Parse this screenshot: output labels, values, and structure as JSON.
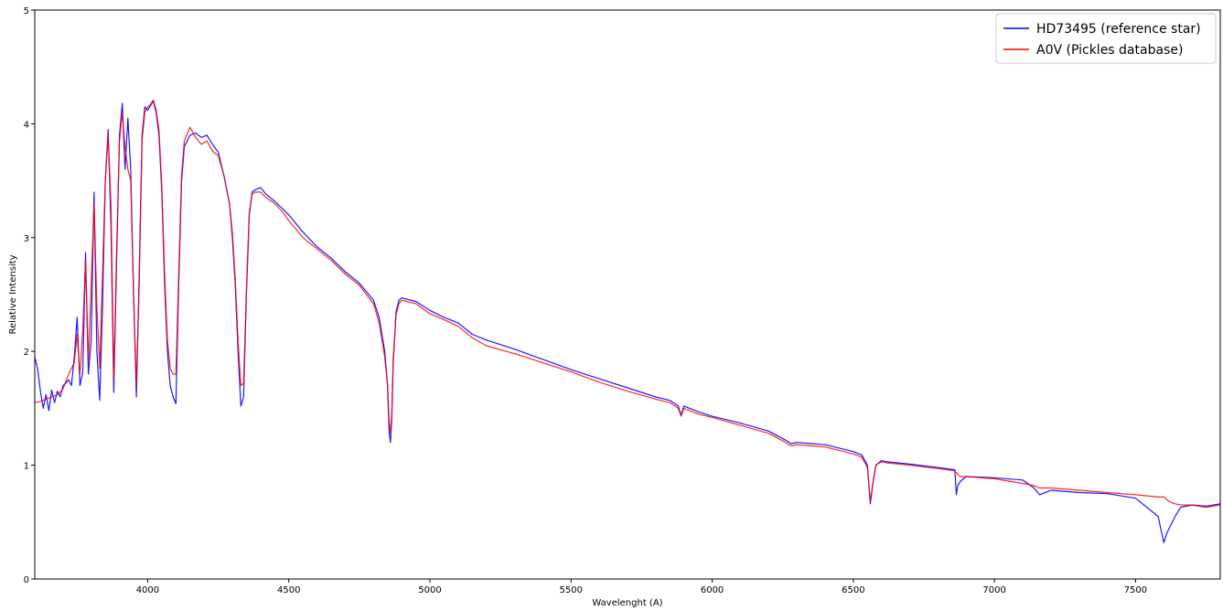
{
  "chart_data": {
    "type": "line",
    "title": "",
    "xlabel": "Wavelenght (A)",
    "ylabel": "Relative Intensity",
    "xlim": [
      3600,
      7800
    ],
    "ylim": [
      0,
      5
    ],
    "x_ticks": [
      4000,
      4500,
      5000,
      5500,
      6000,
      6500,
      7000,
      7500
    ],
    "y_ticks": [
      0,
      1,
      2,
      3,
      4,
      5
    ],
    "grid": false,
    "legend_position": "top-right",
    "series": [
      {
        "name": "HD73495 (reference star)",
        "color": "#0000ff",
        "x": [
          3600,
          3610,
          3620,
          3630,
          3640,
          3650,
          3660,
          3670,
          3680,
          3690,
          3700,
          3710,
          3720,
          3730,
          3740,
          3750,
          3760,
          3770,
          3780,
          3790,
          3800,
          3810,
          3820,
          3830,
          3840,
          3850,
          3860,
          3870,
          3880,
          3890,
          3900,
          3910,
          3920,
          3930,
          3940,
          3950,
          3960,
          3970,
          3980,
          3990,
          4000,
          4010,
          4020,
          4030,
          4040,
          4050,
          4060,
          4070,
          4080,
          4090,
          4100,
          4110,
          4120,
          4130,
          4150,
          4170,
          4190,
          4210,
          4230,
          4250,
          4270,
          4290,
          4300,
          4310,
          4320,
          4330,
          4340,
          4350,
          4360,
          4370,
          4380,
          4400,
          4420,
          4450,
          4480,
          4500,
          4550,
          4600,
          4650,
          4700,
          4750,
          4800,
          4820,
          4840,
          4850,
          4855,
          4860,
          4865,
          4870,
          4880,
          4890,
          4900,
          4950,
          5000,
          5050,
          5100,
          5150,
          5200,
          5300,
          5400,
          5500,
          5600,
          5700,
          5800,
          5850,
          5880,
          5890,
          5900,
          5950,
          6000,
          6100,
          6200,
          6260,
          6280,
          6300,
          6400,
          6500,
          6530,
          6550,
          6560,
          6570,
          6580,
          6600,
          6620,
          6700,
          6800,
          6860,
          6865,
          6870,
          6880,
          6900,
          7000,
          7100,
          7140,
          7160,
          7200,
          7300,
          7400,
          7500,
          7580,
          7600,
          7610,
          7620,
          7640,
          7660,
          7700,
          7750,
          7800
        ],
        "y": [
          1.95,
          1.85,
          1.65,
          1.5,
          1.62,
          1.48,
          1.66,
          1.55,
          1.65,
          1.6,
          1.7,
          1.72,
          1.75,
          1.7,
          1.95,
          2.3,
          1.7,
          1.82,
          2.87,
          1.8,
          2.1,
          3.4,
          2.0,
          1.57,
          2.4,
          3.5,
          3.95,
          3.1,
          1.64,
          2.8,
          3.9,
          4.18,
          3.6,
          4.05,
          3.6,
          2.5,
          1.6,
          2.7,
          3.9,
          4.15,
          4.12,
          4.16,
          4.2,
          4.1,
          3.9,
          3.4,
          2.6,
          2.0,
          1.7,
          1.6,
          1.54,
          2.6,
          3.5,
          3.8,
          3.9,
          3.92,
          3.88,
          3.9,
          3.82,
          3.75,
          3.55,
          3.3,
          3.0,
          2.6,
          2.0,
          1.52,
          1.6,
          2.5,
          3.2,
          3.4,
          3.42,
          3.44,
          3.38,
          3.32,
          3.25,
          3.2,
          3.05,
          2.92,
          2.82,
          2.7,
          2.6,
          2.45,
          2.3,
          2.0,
          1.7,
          1.3,
          1.2,
          1.4,
          1.9,
          2.35,
          2.45,
          2.47,
          2.44,
          2.36,
          2.3,
          2.25,
          2.15,
          2.1,
          2.02,
          1.93,
          1.84,
          1.76,
          1.68,
          1.6,
          1.57,
          1.52,
          1.44,
          1.52,
          1.47,
          1.43,
          1.37,
          1.3,
          1.22,
          1.19,
          1.2,
          1.18,
          1.12,
          1.09,
          1.0,
          0.66,
          0.85,
          1.0,
          1.04,
          1.03,
          1.01,
          0.98,
          0.96,
          0.74,
          0.82,
          0.86,
          0.9,
          0.89,
          0.87,
          0.8,
          0.74,
          0.78,
          0.76,
          0.75,
          0.71,
          0.55,
          0.32,
          0.4,
          0.45,
          0.55,
          0.63,
          0.65,
          0.64,
          0.66
        ]
      },
      {
        "name": "A0V (Pickles database)",
        "color": "#ff0000",
        "x": [
          3600,
          3620,
          3640,
          3660,
          3680,
          3700,
          3720,
          3730,
          3740,
          3750,
          3760,
          3770,
          3780,
          3790,
          3800,
          3810,
          3820,
          3830,
          3840,
          3850,
          3860,
          3870,
          3880,
          3890,
          3900,
          3910,
          3920,
          3930,
          3940,
          3950,
          3960,
          3970,
          3980,
          3990,
          4000,
          4010,
          4020,
          4030,
          4040,
          4050,
          4060,
          4070,
          4080,
          4090,
          4100,
          4110,
          4120,
          4130,
          4150,
          4170,
          4190,
          4210,
          4230,
          4250,
          4270,
          4290,
          4300,
          4310,
          4320,
          4330,
          4340,
          4350,
          4360,
          4370,
          4380,
          4400,
          4420,
          4450,
          4480,
          4500,
          4550,
          4600,
          4650,
          4700,
          4750,
          4800,
          4820,
          4840,
          4850,
          4855,
          4860,
          4865,
          4870,
          4880,
          4890,
          4900,
          4950,
          5000,
          5050,
          5100,
          5150,
          5200,
          5300,
          5400,
          5500,
          5600,
          5700,
          5800,
          5850,
          5880,
          5890,
          5900,
          5950,
          6000,
          6100,
          6200,
          6260,
          6280,
          6300,
          6400,
          6500,
          6530,
          6550,
          6560,
          6570,
          6580,
          6600,
          6620,
          6700,
          6800,
          6860,
          6870,
          6880,
          6900,
          7000,
          7100,
          7140,
          7160,
          7200,
          7300,
          7400,
          7500,
          7580,
          7600,
          7620,
          7640,
          7660,
          7700,
          7750,
          7800
        ],
        "y": [
          1.55,
          1.56,
          1.58,
          1.6,
          1.62,
          1.67,
          1.8,
          1.85,
          1.9,
          2.15,
          1.8,
          2.2,
          2.8,
          1.9,
          2.6,
          3.3,
          2.4,
          1.85,
          2.7,
          3.5,
          3.9,
          3.3,
          1.75,
          2.9,
          3.85,
          4.1,
          3.8,
          3.6,
          3.5,
          2.5,
          1.7,
          2.6,
          3.85,
          4.1,
          4.15,
          4.17,
          4.21,
          4.12,
          3.95,
          3.45,
          2.7,
          2.1,
          1.85,
          1.8,
          1.8,
          2.7,
          3.55,
          3.85,
          3.97,
          3.88,
          3.82,
          3.85,
          3.76,
          3.72,
          3.55,
          3.3,
          3.05,
          2.65,
          2.1,
          1.7,
          1.72,
          2.55,
          3.22,
          3.38,
          3.4,
          3.4,
          3.35,
          3.3,
          3.22,
          3.15,
          3.0,
          2.9,
          2.8,
          2.68,
          2.58,
          2.42,
          2.25,
          1.95,
          1.7,
          1.4,
          1.28,
          1.45,
          1.95,
          2.32,
          2.42,
          2.45,
          2.42,
          2.33,
          2.28,
          2.22,
          2.12,
          2.05,
          1.98,
          1.9,
          1.82,
          1.73,
          1.65,
          1.58,
          1.55,
          1.5,
          1.43,
          1.5,
          1.45,
          1.42,
          1.35,
          1.28,
          1.2,
          1.17,
          1.18,
          1.16,
          1.1,
          1.07,
          0.98,
          0.68,
          0.86,
          1.0,
          1.03,
          1.02,
          1.0,
          0.97,
          0.95,
          0.92,
          0.9,
          0.9,
          0.88,
          0.84,
          0.82,
          0.8,
          0.8,
          0.78,
          0.76,
          0.74,
          0.72,
          0.72,
          0.68,
          0.66,
          0.65,
          0.65,
          0.63,
          0.65
        ]
      }
    ]
  }
}
